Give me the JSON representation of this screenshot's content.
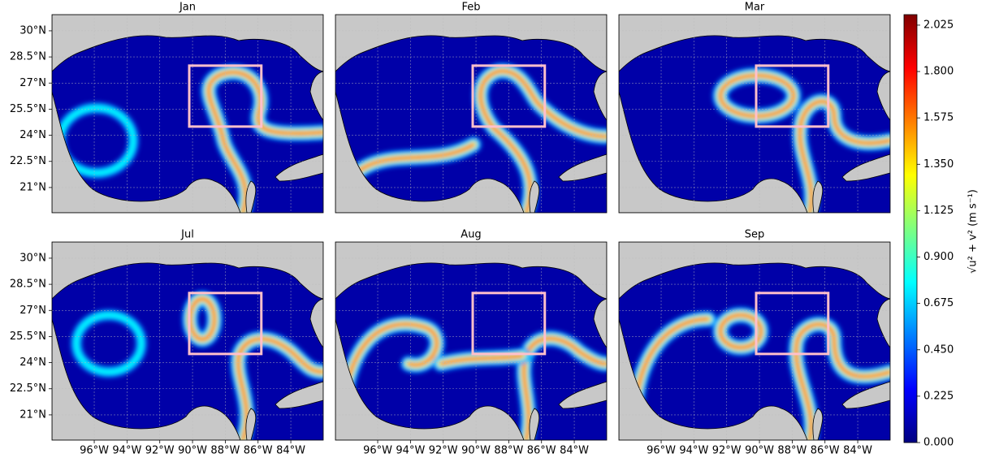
{
  "panels": [
    {
      "title": "Jan"
    },
    {
      "title": "Feb"
    },
    {
      "title": "Mar"
    },
    {
      "title": "Jul"
    },
    {
      "title": "Aug"
    },
    {
      "title": "Sep"
    }
  ],
  "lon_lim": [
    -98.58,
    -82.02
  ],
  "lat_lim": [
    19.55,
    30.93
  ],
  "lat_ticks": [
    {
      "value": 21,
      "label": "21°N"
    },
    {
      "value": 22.5,
      "label": "22.5°N"
    },
    {
      "value": 24,
      "label": "24°N"
    },
    {
      "value": 25.5,
      "label": "25.5°N"
    },
    {
      "value": 27,
      "label": "27°N"
    },
    {
      "value": 28.5,
      "label": "28.5°N"
    },
    {
      "value": 30,
      "label": "30°N"
    }
  ],
  "lon_ticks": [
    {
      "value": -96,
      "label": "96°W"
    },
    {
      "value": -94,
      "label": "94°W"
    },
    {
      "value": -92,
      "label": "92°W"
    },
    {
      "value": -90,
      "label": "90°W"
    },
    {
      "value": -88,
      "label": "88°W"
    },
    {
      "value": -86,
      "label": "86°W"
    },
    {
      "value": -84,
      "label": "84°W"
    }
  ],
  "box": {
    "lon": [
      -90.2,
      -85.8
    ],
    "lat": [
      24.5,
      28
    ],
    "color": "#ffc0cb"
  },
  "grid": true,
  "colorbar": {
    "label": "√u² + v² (m s⁻¹)",
    "lim": [
      0,
      2.076
    ],
    "ticks": [
      {
        "value": 0,
        "label": "0.000"
      },
      {
        "value": 0.225,
        "label": "0.225"
      },
      {
        "value": 0.45,
        "label": "0.450"
      },
      {
        "value": 0.675,
        "label": "0.675"
      },
      {
        "value": 0.9,
        "label": "0.900"
      },
      {
        "value": 1.125,
        "label": "1.125"
      },
      {
        "value": 1.35,
        "label": "1.350"
      },
      {
        "value": 1.575,
        "label": "1.575"
      },
      {
        "value": 1.8,
        "label": "1.800"
      },
      {
        "value": 2.025,
        "label": "2.025"
      }
    ],
    "colors": [
      "#00007f",
      "#0000ff",
      "#007fff",
      "#00ffff",
      "#7fff7f",
      "#ffff00",
      "#ff7f00",
      "#ff0000",
      "#7f0000"
    ]
  }
}
